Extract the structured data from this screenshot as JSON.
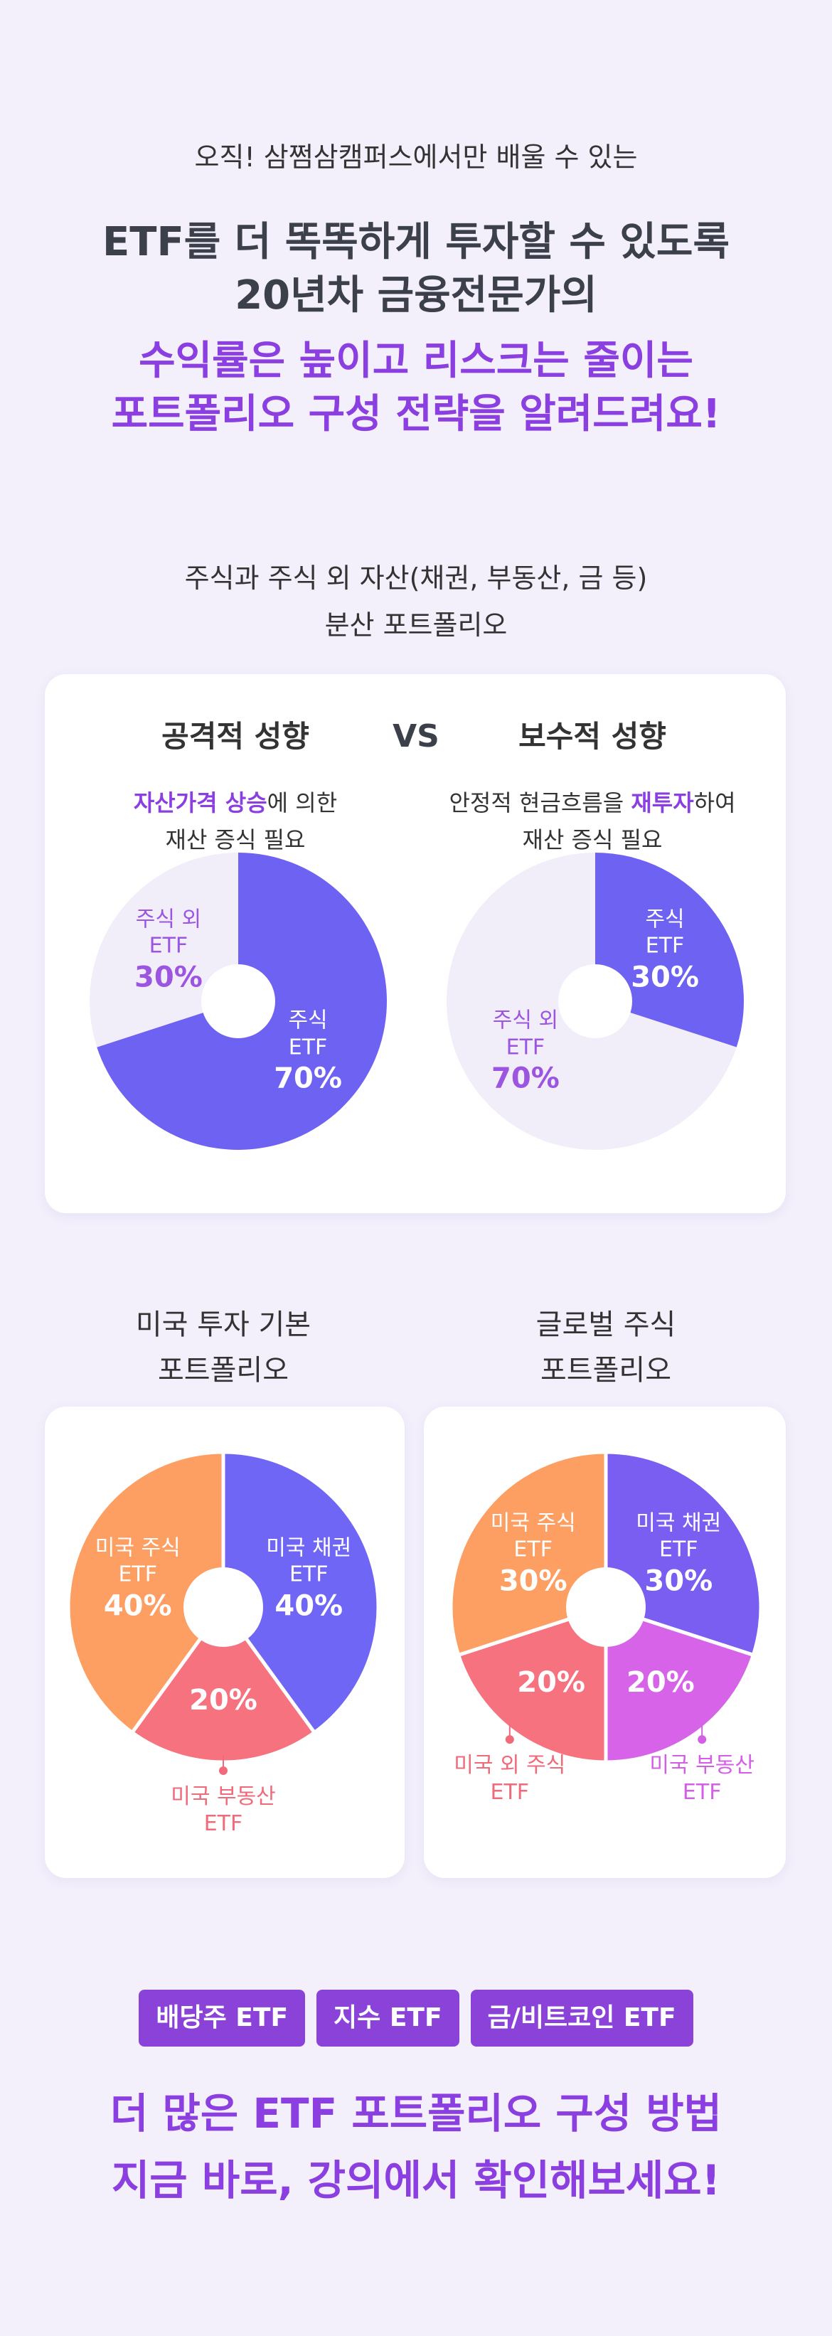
{
  "header": {
    "intro": "오직! 삼쩜삼캠퍼스에서만 배울 수 있는",
    "lines": [
      "ETF를 더 똑똑하게 투자할 수 있도록",
      "20년차 금융전문가의"
    ],
    "highlight_lines": [
      "수익률은 높이고 리스크는 줄이는",
      "포트폴리오 구성 전략을 알려드려요!"
    ]
  },
  "section1": {
    "title_lines": [
      "주식과 주식 외 자산(채권, 부동산, 금 등)",
      "분산 포트폴리오"
    ],
    "versus": "VS"
  },
  "chart_data": [
    {
      "type": "pie",
      "title": "공격적 성향",
      "description": [
        [
          {
            "text": "자산가격 상승",
            "em": true
          },
          {
            "text": "에 의한"
          }
        ],
        [
          {
            "text": "재산 증식 필요"
          }
        ]
      ],
      "categories": [
        "주식 ETF",
        "주식 외 ETF"
      ],
      "values": [
        70,
        30
      ],
      "value_labels": [
        "70%",
        "30%"
      ],
      "colors": [
        "#6e62f3",
        "#f1eefa"
      ],
      "label_colors": [
        "#ffffff",
        "#9b55e0"
      ]
    },
    {
      "type": "pie",
      "title": "보수적 성향",
      "description": [
        [
          {
            "text": "안정적 현금흐름을 "
          },
          {
            "text": "재투자",
            "em": true
          },
          {
            "text": "하여"
          }
        ],
        [
          {
            "text": "재산 증식 필요"
          }
        ]
      ],
      "categories": [
        "주식 ETF",
        "주식 외 ETF"
      ],
      "values": [
        30,
        70
      ],
      "value_labels": [
        "30%",
        "70%"
      ],
      "colors": [
        "#6e62f3",
        "#f1eefa"
      ],
      "label_colors": [
        "#ffffff",
        "#9b55e0"
      ]
    },
    {
      "type": "pie",
      "title": "미국 투자 기본 포트폴리오",
      "categories": [
        "미국 채권 ETF",
        "미국 부동산 ETF",
        "미국 주식 ETF"
      ],
      "values": [
        40,
        20,
        40
      ],
      "value_labels": [
        "40%",
        "20%",
        "40%"
      ],
      "colors": [
        "#6f66f6",
        "#f7727f",
        "#fd9f62"
      ],
      "label_colors": [
        "#ffffff",
        "#f06a7a",
        "#ffffff"
      ],
      "separators": true
    },
    {
      "type": "pie",
      "title": "글로벌 주식 포트폴리오",
      "categories": [
        "미국 채권 ETF",
        "미국 부동산 ETF",
        "미국 외 주식 ETF",
        "미국 주식 ETF"
      ],
      "values": [
        30,
        20,
        20,
        30
      ],
      "value_labels": [
        "30%",
        "20%",
        "20%",
        "30%"
      ],
      "colors": [
        "#7a5ef1",
        "#d764e8",
        "#f7727f",
        "#fd9f62"
      ],
      "label_colors": [
        "#ffffff",
        "#d45ee6",
        "#f06a7a",
        "#ffffff"
      ],
      "separators": true
    }
  ],
  "tags": [
    "배당주 ETF",
    "지수 ETF",
    "금/비트코인 ETF"
  ],
  "footer": [
    "더 많은 ETF 포트폴리오 구성 방법",
    "지금 바로, 강의에서 확인해보세요!"
  ]
}
